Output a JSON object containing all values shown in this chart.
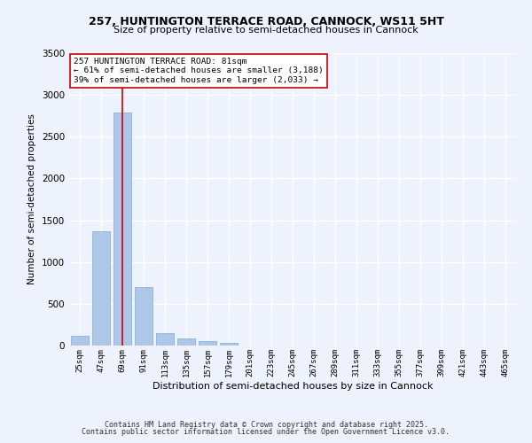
{
  "title1": "257, HUNTINGTON TERRACE ROAD, CANNOCK, WS11 5HT",
  "title2": "Size of property relative to semi-detached houses in Cannock",
  "xlabel": "Distribution of semi-detached houses by size in Cannock",
  "ylabel": "Number of semi-detached properties",
  "categories": [
    "25sqm",
    "47sqm",
    "69sqm",
    "91sqm",
    "113sqm",
    "135sqm",
    "157sqm",
    "179sqm",
    "201sqm",
    "223sqm",
    "245sqm",
    "267sqm",
    "289sqm",
    "311sqm",
    "333sqm",
    "355sqm",
    "377sqm",
    "399sqm",
    "421sqm",
    "443sqm",
    "465sqm"
  ],
  "values": [
    120,
    1370,
    2790,
    700,
    150,
    90,
    50,
    30,
    0,
    0,
    0,
    0,
    0,
    0,
    0,
    0,
    0,
    0,
    0,
    0,
    0
  ],
  "bar_color": "#aec6e8",
  "bar_edge_color": "#7aadd4",
  "vline_x": 2,
  "vline_color": "#cc0000",
  "annotation_text": "257 HUNTINGTON TERRACE ROAD: 81sqm\n← 61% of semi-detached houses are smaller (3,188)\n39% of semi-detached houses are larger (2,033) →",
  "annotation_box_color": "#ffffff",
  "annotation_box_edge": "#cc0000",
  "ylim": [
    0,
    3500
  ],
  "yticks": [
    0,
    500,
    1000,
    1500,
    2000,
    2500,
    3000,
    3500
  ],
  "background_color": "#eef2fc",
  "grid_color": "#ffffff",
  "footer1": "Contains HM Land Registry data © Crown copyright and database right 2025.",
  "footer2": "Contains public sector information licensed under the Open Government Licence v3.0."
}
